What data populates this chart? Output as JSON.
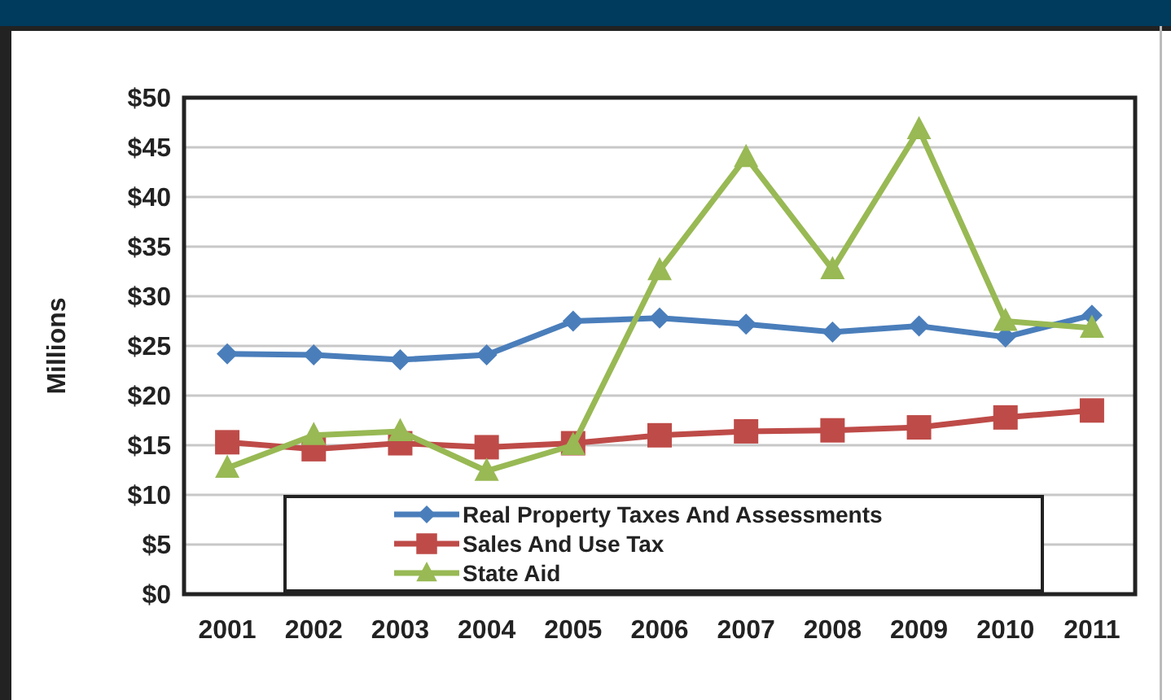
{
  "chart_data": {
    "type": "line",
    "ylabel": "Millions",
    "categories": [
      "2001",
      "2002",
      "2003",
      "2004",
      "2005",
      "2006",
      "2007",
      "2008",
      "2009",
      "2010",
      "2011"
    ],
    "series": [
      {
        "name": "Real Property Taxes And Assessments",
        "color": "#4a7ebb",
        "marker": "diamond",
        "values": [
          24.2,
          24.1,
          23.6,
          24.1,
          27.5,
          27.8,
          27.2,
          26.4,
          27.0,
          25.9,
          28.1
        ]
      },
      {
        "name": "Sales And Use Tax",
        "color": "#be4b48",
        "marker": "square",
        "values": [
          15.3,
          14.6,
          15.2,
          14.8,
          15.2,
          16.0,
          16.4,
          16.5,
          16.8,
          17.8,
          18.5
        ]
      },
      {
        "name": "State Aid",
        "color": "#98b954",
        "marker": "triangle",
        "values": [
          12.7,
          16.0,
          16.4,
          12.4,
          15.0,
          32.6,
          44.0,
          32.7,
          46.8,
          27.5,
          26.8
        ]
      }
    ],
    "ylim": [
      0,
      50
    ],
    "yticks": [
      {
        "value": 0,
        "label": "$0"
      },
      {
        "value": 5,
        "label": "$5"
      },
      {
        "value": 10,
        "label": "$10"
      },
      {
        "value": 15,
        "label": "$15"
      },
      {
        "value": 20,
        "label": "$20"
      },
      {
        "value": 25,
        "label": "$25"
      },
      {
        "value": 30,
        "label": "$30"
      },
      {
        "value": 35,
        "label": "$35"
      },
      {
        "value": 40,
        "label": "$40"
      },
      {
        "value": 45,
        "label": "$45"
      },
      {
        "value": 50,
        "label": "$50"
      }
    ],
    "grid": "y",
    "legend": "bottom",
    "line_style": "solid"
  }
}
